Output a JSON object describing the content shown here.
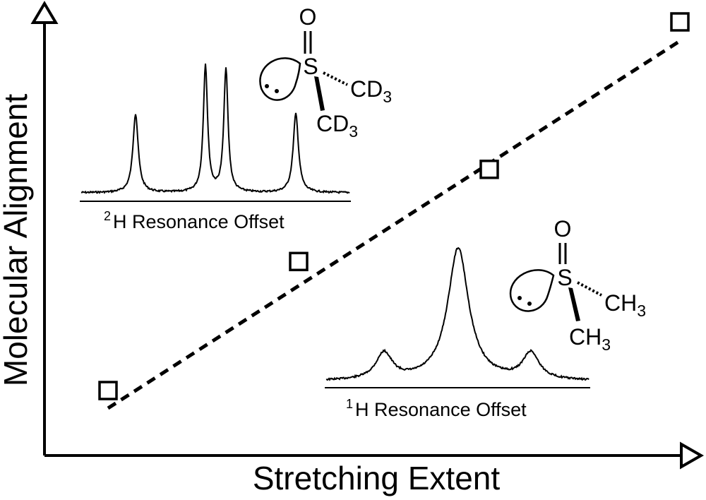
{
  "chart_data": {
    "type": "scatter",
    "title": "",
    "xlabel": "Stretching Extent",
    "ylabel": "Molecular Alignment",
    "grid": false,
    "ticks": "none",
    "series": [
      {
        "values_note": "",
        "points": [
          {
            "x": 1,
            "y": 1.0
          },
          {
            "x": 2,
            "y": 2.4
          },
          {
            "x": 3,
            "y": 3.4
          },
          {
            "x": 4,
            "y": 5.0
          }
        ]
      }
    ],
    "trendline": {
      "style": "dashed",
      "kind": "linear"
    },
    "insets": [
      {
        "label_sup": "2",
        "label_main": "H Resonance Offset",
        "molecule": {
          "s": "S",
          "o": "O",
          "g1": "CD",
          "g1_sub": "3",
          "g2": "CD",
          "g2_sub": "3"
        },
        "peaks": [
          0.62,
          1.0,
          0.97,
          0.62
        ]
      },
      {
        "label_sup": "1",
        "label_main": "H Resonance Offset",
        "molecule": {
          "s": "S",
          "o": "O",
          "g1": "CH",
          "g1_sub": "3",
          "g2": "CH",
          "g2_sub": "3"
        },
        "peaks": [
          0.2,
          1.0,
          0.2
        ]
      }
    ]
  }
}
